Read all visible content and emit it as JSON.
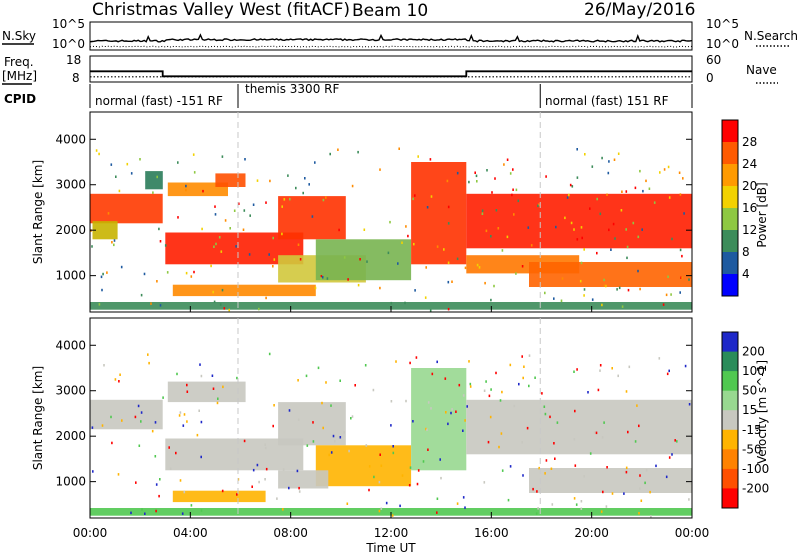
{
  "header": {
    "station": "Christmas Valley West (fitACF)",
    "beam": "Beam 10",
    "date": "26/May/2016"
  },
  "nsky_panel": {
    "left_label": "N.Sky",
    "left_ticks": [
      "10^5",
      "10^0"
    ],
    "right_ticks": [
      "10^5",
      "10^0"
    ],
    "right_label": "N.Search"
  },
  "freq_panel": {
    "left_label_1": "Freq.",
    "left_label_2": "[MHz]",
    "left_ticks": [
      "18",
      "8"
    ],
    "right_ticks": [
      "60",
      "0"
    ],
    "right_label": "Nave",
    "freq_steps": [
      {
        "t0": 0,
        "t1": 2.9,
        "value": 12.1
      },
      {
        "t0": 2.9,
        "t1": 15.0,
        "value": 10.2
      },
      {
        "t0": 15.0,
        "t1": 24,
        "value": 12.1
      }
    ],
    "nave_level": 12
  },
  "cpid": {
    "label": "CPID",
    "segments": [
      {
        "start": 0,
        "end": 5.9,
        "text": "normal (fast) -151 RF"
      },
      {
        "start": 5.9,
        "end": 17.95,
        "text": "themis 3300 RF"
      },
      {
        "start": 17.95,
        "end": 24,
        "text": "normal (fast) 151 RF"
      }
    ]
  },
  "colorbars": {
    "power": {
      "title": "Power [dB]",
      "ticks": [
        "28",
        "24",
        "20",
        "16",
        "12",
        "8",
        "4"
      ],
      "colors": [
        "#ff0000",
        "#ff5a00",
        "#ff9a00",
        "#f2d200",
        "#8ec842",
        "#3c8c5a",
        "#1e5aa0",
        "#0000ff"
      ]
    },
    "velocity": {
      "title": "Velocity [m s^-1]",
      "ticks": [
        "200",
        "100",
        "50",
        "15",
        "-15",
        "-50",
        "-100",
        "-200"
      ],
      "colors": [
        "#1e28c8",
        "#2a8c5a",
        "#50c850",
        "#98d890",
        "#c8c8c0",
        "#ffb400",
        "#ff8200",
        "#ff5000",
        "#ff0000"
      ]
    }
  },
  "chart_data": {
    "type": "heatmap",
    "xlabel": "Time UT",
    "x_ticks": [
      "00:00",
      "04:00",
      "08:00",
      "12:00",
      "16:00",
      "20:00",
      "00:00"
    ],
    "xlim": [
      0,
      24
    ],
    "ylabel": "Slant Range [km]",
    "y_ticks": [
      "4000",
      "3000",
      "2000",
      "1000"
    ],
    "ylim": [
      200,
      4600
    ],
    "panels": [
      {
        "name": "power",
        "regions": [
          {
            "t0": 0.0,
            "t1": 2.9,
            "r0": 2150,
            "r1": 2800,
            "color": "#ff3a00"
          },
          {
            "t0": 0.1,
            "t1": 1.1,
            "r0": 1800,
            "r1": 2200,
            "color": "#c8b400"
          },
          {
            "t0": 2.2,
            "t1": 2.9,
            "r0": 2900,
            "r1": 3300,
            "color": "#2a7c5a"
          },
          {
            "t0": 3.0,
            "t1": 8.5,
            "r0": 1250,
            "r1": 1950,
            "color": "#ff1e00"
          },
          {
            "t0": 7.5,
            "t1": 10.2,
            "r0": 1800,
            "r1": 2750,
            "color": "#ff3200"
          },
          {
            "t0": 3.1,
            "t1": 5.5,
            "r0": 2750,
            "r1": 3050,
            "color": "#ff8c00"
          },
          {
            "t0": 5.0,
            "t1": 6.2,
            "r0": 2950,
            "r1": 3250,
            "color": "#ff5000"
          },
          {
            "t0": 3.3,
            "t1": 9.0,
            "r0": 550,
            "r1": 800,
            "color": "#ff8a00"
          },
          {
            "t0": 7.5,
            "t1": 11.0,
            "r0": 850,
            "r1": 1450,
            "color": "#d2c83c"
          },
          {
            "t0": 9.0,
            "t1": 12.8,
            "r0": 900,
            "r1": 1800,
            "color": "#78b450"
          },
          {
            "t0": 12.8,
            "t1": 15.0,
            "r0": 1250,
            "r1": 3500,
            "color": "#ff3200"
          },
          {
            "t0": 15.0,
            "t1": 24.0,
            "r0": 1600,
            "r1": 2800,
            "color": "#ff1e00"
          },
          {
            "t0": 15.0,
            "t1": 19.5,
            "r0": 1050,
            "r1": 1450,
            "color": "#ff7800"
          },
          {
            "t0": 17.5,
            "t1": 24.0,
            "r0": 750,
            "r1": 1300,
            "color": "#ff6400"
          },
          {
            "t0": 0.0,
            "t1": 24.0,
            "r0": 250,
            "r1": 420,
            "color": "#3c8c5a"
          }
        ]
      },
      {
        "name": "velocity",
        "regions": [
          {
            "t0": 0.0,
            "t1": 2.9,
            "r0": 2150,
            "r1": 2800,
            "color": "#c8c8c0"
          },
          {
            "t0": 3.0,
            "t1": 8.5,
            "r0": 1250,
            "r1": 1950,
            "color": "#c8c8c0"
          },
          {
            "t0": 7.5,
            "t1": 10.2,
            "r0": 1800,
            "r1": 2750,
            "color": "#c8c8c0"
          },
          {
            "t0": 3.1,
            "t1": 6.2,
            "r0": 2750,
            "r1": 3200,
            "color": "#c8c8c0"
          },
          {
            "t0": 3.3,
            "t1": 7.0,
            "r0": 550,
            "r1": 800,
            "color": "#ffb400"
          },
          {
            "t0": 9.0,
            "t1": 12.8,
            "r0": 900,
            "r1": 1800,
            "color": "#ffb400"
          },
          {
            "t0": 7.5,
            "t1": 9.5,
            "r0": 850,
            "r1": 1250,
            "color": "#c8c8c0"
          },
          {
            "t0": 12.8,
            "t1": 15.0,
            "r0": 1250,
            "r1": 3500,
            "color": "#98d890"
          },
          {
            "t0": 15.0,
            "t1": 24.0,
            "r0": 1600,
            "r1": 2800,
            "color": "#c8c8c0"
          },
          {
            "t0": 17.5,
            "t1": 24.0,
            "r0": 750,
            "r1": 1300,
            "color": "#c8c8c0"
          },
          {
            "t0": 0.0,
            "t1": 24.0,
            "r0": 250,
            "r1": 420,
            "color": "#50c850"
          }
        ]
      }
    ]
  }
}
